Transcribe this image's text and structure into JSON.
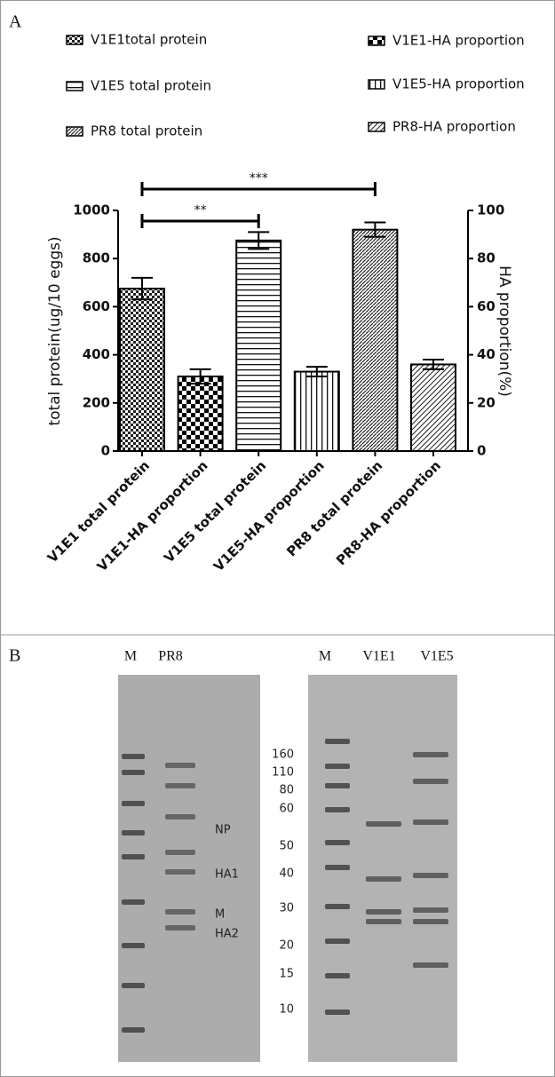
{
  "chart_data": {
    "type": "bar",
    "categories": [
      "V1E1 total protein",
      "V1E1-HA proportion",
      "V1E5 total protein",
      "V1E5-HA proportion",
      "PR8 total protein",
      "PR8-HA proportion"
    ],
    "values": [
      675,
      31,
      875,
      33,
      920,
      36
    ],
    "errors": [
      45,
      3,
      35,
      2,
      30,
      2
    ],
    "axes": [
      "y",
      "y2",
      "y",
      "y2",
      "y",
      "y2"
    ],
    "legend": [
      "V1E1total protein",
      "V1E1-HA proportion",
      "V1E5 total protein",
      "V1E5-HA proportion",
      "PR8 total protein",
      "PR8-HA proportion"
    ],
    "patterns": [
      "checker-fine",
      "checker-bold",
      "hlines",
      "vlines",
      "dense-diag",
      "diag"
    ],
    "ylabel": "total protein(ug/10 eggs)",
    "y2label": "HA proportion(%)",
    "ylim": [
      0,
      1000
    ],
    "yticks": [
      0,
      200,
      400,
      600,
      800,
      1000
    ],
    "y2lim": [
      0,
      100
    ],
    "y2ticks": [
      0,
      20,
      40,
      60,
      80,
      100
    ],
    "significance": [
      "**",
      "***"
    ]
  },
  "panel_labels": {
    "a": "A",
    "b": "B"
  },
  "gel": {
    "left_lanes": [
      "M",
      "PR8"
    ],
    "left_bands": [
      "NP",
      "HA1",
      "M",
      "HA2"
    ],
    "right_lanes": [
      "M",
      "V1E1",
      "V1E5"
    ],
    "markers": [
      160,
      110,
      80,
      60,
      50,
      40,
      30,
      20,
      15,
      10
    ]
  }
}
